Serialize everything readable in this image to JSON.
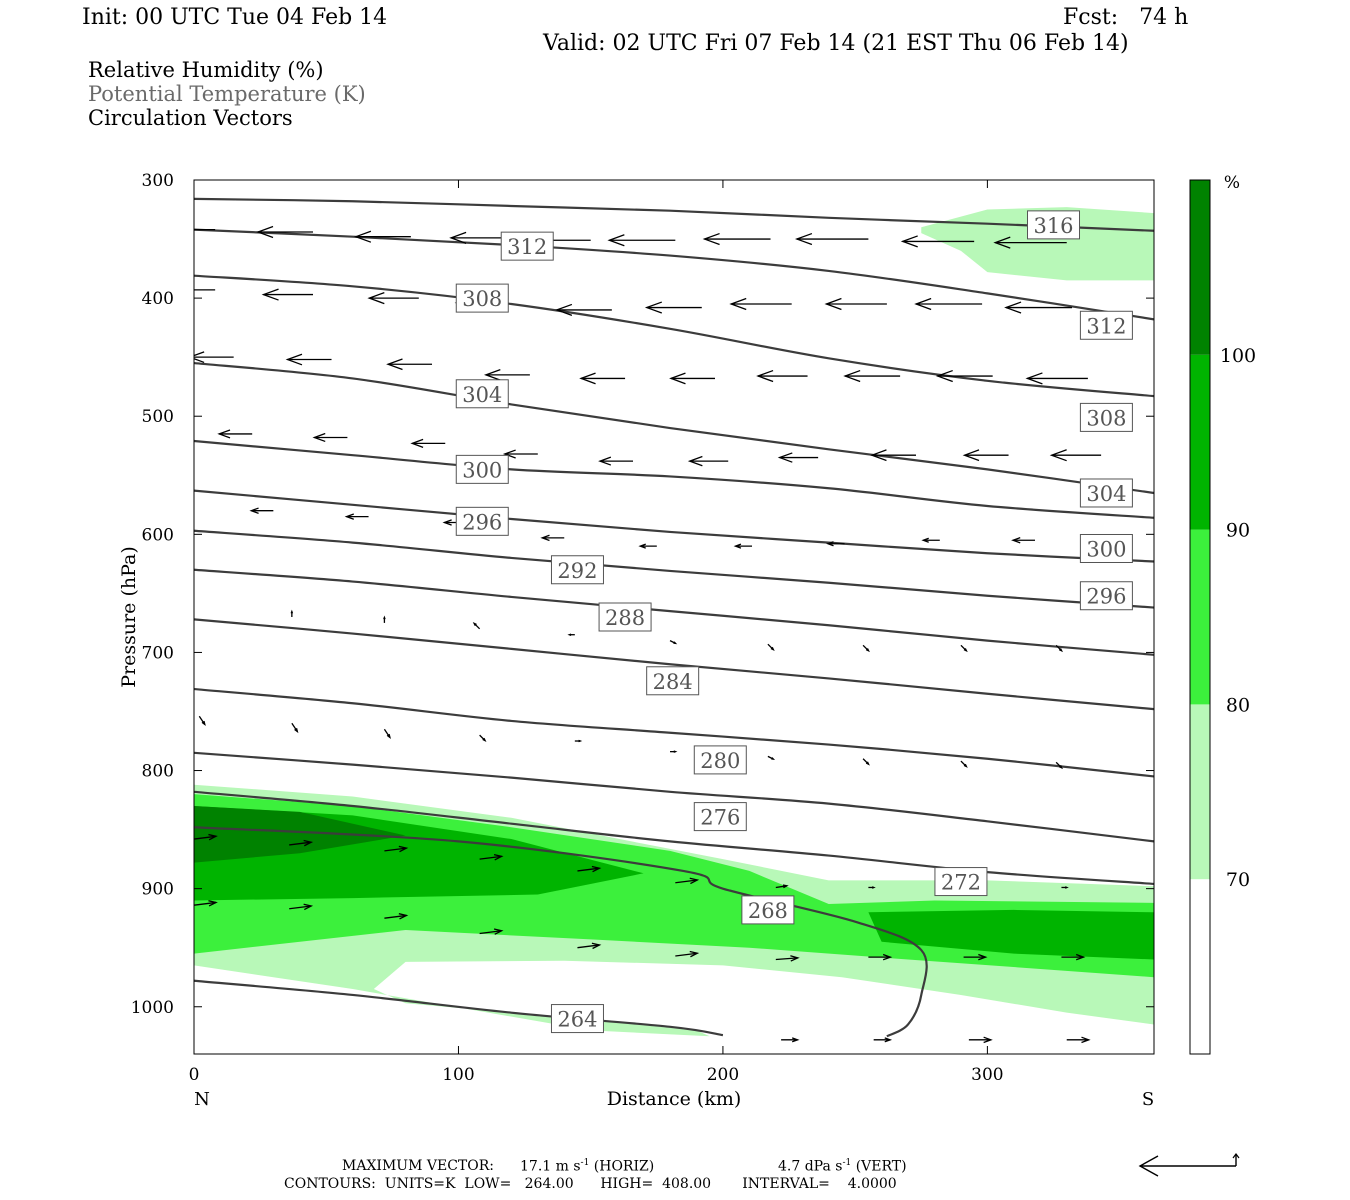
{
  "header": {
    "init": "Init: 00 UTC Tue 04 Feb 14",
    "fcst": "Fcst:   74 h",
    "valid": "Valid: 02 UTC Fri 07 Feb 14 (21 EST Thu 06 Feb 14)"
  },
  "legend": {
    "rh": "Relative Humidity (%)",
    "theta": "Potential Temperature (K)",
    "vectors": "Circulation Vectors"
  },
  "footer": {
    "max_vector_label": "MAXIMUM VECTOR:",
    "max_vector_horiz": "17.1 m s",
    "horiz_unit": "(HORIZ)",
    "max_vector_vert": "4.7 dPa s",
    "vert_unit": "(VERT)",
    "exponent": "-1",
    "contours": "CONTOURS:  UNITS=K  LOW=   264.00      HIGH=  408.00       INTERVAL=    4.0000"
  },
  "colors": {
    "rh70": "#b8f8b8",
    "rh80": "#3cf03c",
    "rh90": "#00b400",
    "rh100": "#008200",
    "contour": "#3c3c3c"
  },
  "chart_data": {
    "type": "cross-section",
    "xlabel": "Distance (km)",
    "ylabel": "Pressure (hPa)",
    "x_ticks": [
      0,
      100,
      200,
      300
    ],
    "y_ticks": [
      300,
      400,
      500,
      600,
      700,
      800,
      900,
      1000
    ],
    "xlim": [
      0,
      363
    ],
    "ylim": [
      300,
      1040
    ],
    "y_inverted": true,
    "x_end_labels": {
      "left": "N",
      "right": "S"
    },
    "colorbar": {
      "unit": "%",
      "levels": [
        70,
        80,
        90,
        100
      ],
      "colors": [
        "#ffffff",
        "#b8f8b8",
        "#3cf03c",
        "#00b400",
        "#008200"
      ]
    },
    "theta_contours": [
      {
        "value": 264,
        "x": [
          0,
          60,
          120,
          180,
          200
        ],
        "y": [
          978,
          990,
          1005,
          1017,
          1024
        ]
      },
      {
        "value": 268,
        "x": [
          0,
          100,
          185,
          200,
          250,
          275,
          275,
          270,
          262
        ],
        "y": [
          848,
          860,
          885,
          900,
          928,
          952,
          990,
          1015,
          1025
        ]
      },
      {
        "value": 272,
        "x": [
          0,
          60,
          120,
          180,
          240,
          300,
          363
        ],
        "y": [
          818,
          830,
          845,
          860,
          872,
          886,
          896
        ]
      },
      {
        "value": 276,
        "x": [
          0,
          60,
          120,
          180,
          240,
          300,
          363
        ],
        "y": [
          785,
          795,
          806,
          818,
          828,
          843,
          860
        ]
      },
      {
        "value": 280,
        "x": [
          0,
          60,
          120,
          180,
          240,
          300,
          363
        ],
        "y": [
          731,
          743,
          758,
          768,
          778,
          790,
          805
        ]
      },
      {
        "value": 284,
        "x": [
          0,
          60,
          120,
          180,
          240,
          300,
          363
        ],
        "y": [
          672,
          684,
          697,
          710,
          722,
          735,
          748
        ]
      },
      {
        "value": 288,
        "x": [
          0,
          60,
          120,
          180,
          240,
          300,
          363
        ],
        "y": [
          630,
          640,
          653,
          665,
          677,
          690,
          702
        ]
      },
      {
        "value": 292,
        "x": [
          0,
          60,
          120,
          180,
          240,
          300,
          363
        ],
        "y": [
          597,
          607,
          620,
          631,
          641,
          652,
          662
        ]
      },
      {
        "value": 296,
        "x": [
          0,
          60,
          120,
          180,
          240,
          300,
          363
        ],
        "y": [
          563,
          575,
          587,
          598,
          607,
          616,
          623
        ]
      },
      {
        "value": 300,
        "x": [
          0,
          60,
          120,
          180,
          240,
          300,
          363
        ],
        "y": [
          521,
          533,
          545,
          551,
          561,
          576,
          586
        ]
      },
      {
        "value": 304,
        "x": [
          0,
          60,
          120,
          180,
          240,
          300,
          363
        ],
        "y": [
          455,
          468,
          490,
          510,
          528,
          545,
          565
        ]
      },
      {
        "value": 308,
        "x": [
          0,
          60,
          120,
          180,
          240,
          300,
          363
        ],
        "y": [
          381,
          390,
          405,
          426,
          451,
          470,
          483
        ]
      },
      {
        "value": 312,
        "x": [
          0,
          60,
          120,
          180,
          240,
          300,
          363
        ],
        "y": [
          342,
          348,
          355,
          364,
          377,
          396,
          418
        ]
      },
      {
        "value": 316,
        "x": [
          0,
          60,
          120,
          180,
          240,
          300,
          363
        ],
        "y": [
          316,
          318,
          322,
          326,
          332,
          337,
          343
        ]
      }
    ],
    "contour_labels": [
      {
        "value": "316",
        "x": 325,
        "y": 338
      },
      {
        "value": "312",
        "x": 126,
        "y": 356
      },
      {
        "value": "312",
        "x": 345,
        "y": 423
      },
      {
        "value": "308",
        "x": 109,
        "y": 400
      },
      {
        "value": "308",
        "x": 345,
        "y": 501
      },
      {
        "value": "304",
        "x": 109,
        "y": 481
      },
      {
        "value": "304",
        "x": 345,
        "y": 565
      },
      {
        "value": "300",
        "x": 109,
        "y": 545
      },
      {
        "value": "300",
        "x": 345,
        "y": 612
      },
      {
        "value": "296",
        "x": 109,
        "y": 589
      },
      {
        "value": "296",
        "x": 345,
        "y": 652
      },
      {
        "value": "292",
        "x": 145,
        "y": 630
      },
      {
        "value": "288",
        "x": 163,
        "y": 670
      },
      {
        "value": "284",
        "x": 181,
        "y": 724
      },
      {
        "value": "280",
        "x": 199,
        "y": 791
      },
      {
        "value": "276",
        "x": 199,
        "y": 839
      },
      {
        "value": "272",
        "x": 290,
        "y": 894
      },
      {
        "value": "268",
        "x": 217,
        "y": 918
      },
      {
        "value": "264",
        "x": 145,
        "y": 1010
      }
    ],
    "vectors": [
      {
        "x": 8,
        "y": 342,
        "u": -1.0,
        "w": 0
      },
      {
        "x": 45,
        "y": 344,
        "u": -1.0,
        "w": 0
      },
      {
        "x": 82,
        "y": 348,
        "u": -1.0,
        "w": 0
      },
      {
        "x": 118,
        "y": 349,
        "u": -1.0,
        "w": 0
      },
      {
        "x": 150,
        "y": 351,
        "u": -1.0,
        "w": 0
      },
      {
        "x": 182,
        "y": 351,
        "u": -1.2,
        "w": 0
      },
      {
        "x": 218,
        "y": 350,
        "u": -1.2,
        "w": 0
      },
      {
        "x": 255,
        "y": 350,
        "u": -1.3,
        "w": 0
      },
      {
        "x": 295,
        "y": 352,
        "u": -1.3,
        "w": 0
      },
      {
        "x": 330,
        "y": 353,
        "u": -1.3,
        "w": 0
      },
      {
        "x": 8,
        "y": 393,
        "u": -0.9,
        "w": 0
      },
      {
        "x": 45,
        "y": 397,
        "u": -0.9,
        "w": 0
      },
      {
        "x": 85,
        "y": 400,
        "u": -0.9,
        "w": 0
      },
      {
        "x": 118,
        "y": 404,
        "u": -0.9,
        "w": 0
      },
      {
        "x": 158,
        "y": 410,
        "u": -1.0,
        "w": 0
      },
      {
        "x": 192,
        "y": 408,
        "u": -1.0,
        "w": 0
      },
      {
        "x": 226,
        "y": 405,
        "u": -1.1,
        "w": 0
      },
      {
        "x": 262,
        "y": 405,
        "u": -1.1,
        "w": 0
      },
      {
        "x": 298,
        "y": 405,
        "u": -1.2,
        "w": 0
      },
      {
        "x": 332,
        "y": 408,
        "u": -1.2,
        "w": 0
      },
      {
        "x": 15,
        "y": 450,
        "u": -0.8,
        "w": 0
      },
      {
        "x": 52,
        "y": 452,
        "u": -0.8,
        "w": 0
      },
      {
        "x": 90,
        "y": 456,
        "u": -0.8,
        "w": 0
      },
      {
        "x": 127,
        "y": 465,
        "u": -0.8,
        "w": 0
      },
      {
        "x": 163,
        "y": 468,
        "u": -0.8,
        "w": 0
      },
      {
        "x": 197,
        "y": 468,
        "u": -0.8,
        "w": 0
      },
      {
        "x": 232,
        "y": 466,
        "u": -0.9,
        "w": 0
      },
      {
        "x": 267,
        "y": 466,
        "u": -1.0,
        "w": 0
      },
      {
        "x": 302,
        "y": 466,
        "u": -1.0,
        "w": 0
      },
      {
        "x": 338,
        "y": 468,
        "u": -1.1,
        "w": 0
      },
      {
        "x": 22,
        "y": 515,
        "u": -0.6,
        "w": 0
      },
      {
        "x": 58,
        "y": 518,
        "u": -0.6,
        "w": 0
      },
      {
        "x": 95,
        "y": 523,
        "u": -0.6,
        "w": 0
      },
      {
        "x": 130,
        "y": 532,
        "u": -0.6,
        "w": 0
      },
      {
        "x": 166,
        "y": 538,
        "u": -0.6,
        "w": 0
      },
      {
        "x": 202,
        "y": 538,
        "u": -0.7,
        "w": 0
      },
      {
        "x": 236,
        "y": 535,
        "u": -0.7,
        "w": 0
      },
      {
        "x": 273,
        "y": 533,
        "u": -0.8,
        "w": 0
      },
      {
        "x": 308,
        "y": 533,
        "u": -0.8,
        "w": 0
      },
      {
        "x": 343,
        "y": 533,
        "u": -0.9,
        "w": 0
      },
      {
        "x": 30,
        "y": 580,
        "u": -0.4,
        "w": 0
      },
      {
        "x": 66,
        "y": 585,
        "u": -0.4,
        "w": 0
      },
      {
        "x": 103,
        "y": 590,
        "u": -0.4,
        "w": 0
      },
      {
        "x": 140,
        "y": 603,
        "u": -0.4,
        "w": 0
      },
      {
        "x": 175,
        "y": 610,
        "u": -0.3,
        "w": 0
      },
      {
        "x": 211,
        "y": 610,
        "u": -0.3,
        "w": 0
      },
      {
        "x": 246,
        "y": 608,
        "u": -0.3,
        "w": 0
      },
      {
        "x": 282,
        "y": 605,
        "u": -0.3,
        "w": 0
      },
      {
        "x": 318,
        "y": 605,
        "u": -0.4,
        "w": 0
      },
      {
        "x": 353,
        "y": 605,
        "u": -0.5,
        "w": 0
      },
      {
        "x": 37,
        "y": 670,
        "u": 0,
        "w": 0.1
      },
      {
        "x": 72,
        "y": 675,
        "u": 0,
        "w": 0.1
      },
      {
        "x": 108,
        "y": 680,
        "u": -0.1,
        "w": 0.1
      },
      {
        "x": 144,
        "y": 685,
        "u": -0.1,
        "w": 0
      },
      {
        "x": 180,
        "y": 690,
        "u": 0.1,
        "w": -0.05
      },
      {
        "x": 217,
        "y": 693,
        "u": 0.1,
        "w": -0.1
      },
      {
        "x": 253,
        "y": 694,
        "u": 0.1,
        "w": -0.1
      },
      {
        "x": 290,
        "y": 694,
        "u": 0.1,
        "w": -0.1
      },
      {
        "x": 326,
        "y": 694,
        "u": 0.1,
        "w": -0.1
      },
      {
        "x": 2,
        "y": 754,
        "u": 0.1,
        "w": -0.15
      },
      {
        "x": 37,
        "y": 760,
        "u": 0.1,
        "w": -0.15
      },
      {
        "x": 72,
        "y": 765,
        "u": 0.1,
        "w": -0.15
      },
      {
        "x": 108,
        "y": 770,
        "u": 0.1,
        "w": -0.1
      },
      {
        "x": 144,
        "y": 775,
        "u": 0.1,
        "w": 0
      },
      {
        "x": 180,
        "y": 784,
        "u": 0.1,
        "w": 0
      },
      {
        "x": 217,
        "y": 788,
        "u": 0.1,
        "w": -0.05
      },
      {
        "x": 253,
        "y": 790,
        "u": 0.1,
        "w": -0.1
      },
      {
        "x": 290,
        "y": 792,
        "u": 0.1,
        "w": -0.1
      },
      {
        "x": 326,
        "y": 793,
        "u": 0.1,
        "w": -0.1
      },
      {
        "x": 0,
        "y": 858,
        "u": 0.4,
        "w": 0.05
      },
      {
        "x": 36,
        "y": 863,
        "u": 0.4,
        "w": 0.05
      },
      {
        "x": 72,
        "y": 868,
        "u": 0.4,
        "w": 0.05
      },
      {
        "x": 108,
        "y": 875,
        "u": 0.4,
        "w": 0.05
      },
      {
        "x": 145,
        "y": 885,
        "u": 0.4,
        "w": 0.05
      },
      {
        "x": 182,
        "y": 895,
        "u": 0.4,
        "w": 0.05
      },
      {
        "x": 220,
        "y": 899,
        "u": 0.2,
        "w": 0.03
      },
      {
        "x": 255,
        "y": 899,
        "u": 0.1,
        "w": 0
      },
      {
        "x": 291,
        "y": 899,
        "u": 0.1,
        "w": 0
      },
      {
        "x": 328,
        "y": 899,
        "u": 0.1,
        "w": 0
      },
      {
        "x": 0,
        "y": 914,
        "u": 0.4,
        "w": 0.05
      },
      {
        "x": 36,
        "y": 917,
        "u": 0.4,
        "w": 0.05
      },
      {
        "x": 72,
        "y": 925,
        "u": 0.4,
        "w": 0.05
      },
      {
        "x": 108,
        "y": 938,
        "u": 0.4,
        "w": 0.05
      },
      {
        "x": 145,
        "y": 950,
        "u": 0.4,
        "w": 0.05
      },
      {
        "x": 182,
        "y": 957,
        "u": 0.4,
        "w": 0.05
      },
      {
        "x": 220,
        "y": 960,
        "u": 0.4,
        "w": 0.03
      },
      {
        "x": 255,
        "y": 958,
        "u": 0.4,
        "w": 0
      },
      {
        "x": 291,
        "y": 958,
        "u": 0.4,
        "w": 0
      },
      {
        "x": 328,
        "y": 958,
        "u": 0.4,
        "w": 0
      },
      {
        "x": 222,
        "y": 1028,
        "u": 0.3,
        "w": 0
      },
      {
        "x": 257,
        "y": 1028,
        "u": 0.3,
        "w": 0
      },
      {
        "x": 293,
        "y": 1028,
        "u": 0.4,
        "w": 0
      },
      {
        "x": 330,
        "y": 1028,
        "u": 0.4,
        "w": 0
      }
    ],
    "rh_regions": [
      {
        "level": 70,
        "x": [
          0,
          60,
          120,
          170,
          200,
          240,
          300,
          363,
          363,
          330,
          290,
          245,
          200,
          140,
          80,
          68,
          80,
          130,
          190,
          195,
          150,
          60,
          0
        ],
        "y": [
          812,
          822,
          840,
          862,
          875,
          893,
          893,
          898,
          1015,
          1005,
          990,
          975,
          965,
          961,
          962,
          985,
          997,
          1007,
          1020,
          1025,
          1020,
          985,
          965
        ]
      },
      {
        "level": 80,
        "x": [
          0,
          60,
          120,
          180,
          210,
          240,
          280,
          363,
          363,
          320,
          270,
          210,
          150,
          80,
          0
        ],
        "y": [
          820,
          830,
          848,
          868,
          885,
          913,
          910,
          912,
          975,
          968,
          960,
          950,
          943,
          935,
          955
        ]
      },
      {
        "level": 90,
        "x": [
          0,
          60,
          120,
          170,
          130,
          60,
          0
        ],
        "y": [
          830,
          838,
          858,
          887,
          905,
          908,
          910
        ]
      },
      {
        "level": 90,
        "x": [
          255,
          310,
          363,
          363,
          310,
          260
        ],
        "y": [
          920,
          918,
          920,
          960,
          955,
          945
        ]
      },
      {
        "level": 100,
        "x": [
          0,
          40,
          80,
          40,
          0
        ],
        "y": [
          830,
          835,
          855,
          870,
          878
        ]
      }
    ],
    "rh_top_region": {
      "level": 70,
      "x": [
        275,
        300,
        330,
        363,
        363,
        330,
        300,
        290,
        275
      ],
      "y": [
        340,
        325,
        323,
        328,
        385,
        385,
        378,
        360,
        345
      ]
    }
  }
}
